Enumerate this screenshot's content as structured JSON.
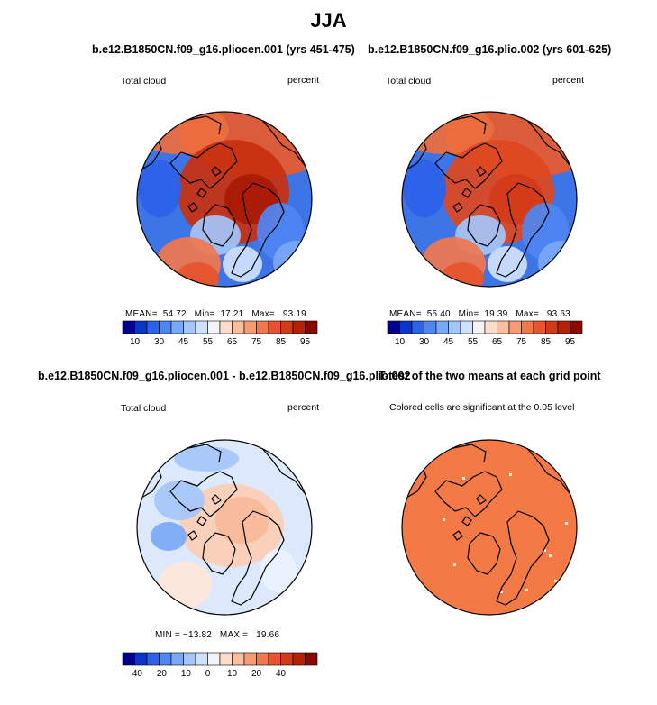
{
  "figure": {
    "title": "JJA"
  },
  "panels": [
    {
      "title": "b.e12.B1850CN.f09_g16.pliocen.001 (yrs 451-475)",
      "variable": "Total cloud",
      "units": "percent",
      "stats": {
        "mean_label": "MEAN=",
        "mean": "54.72",
        "min_label": "Min=",
        "min": "17.21",
        "max_label": "Max=",
        "max": "93.19"
      }
    },
    {
      "title": "b.e12.B1850CN.f09_g16.plio.002 (yrs 601-625)",
      "variable": "Total cloud",
      "units": "percent",
      "stats": {
        "mean_label": "MEAN=",
        "mean": "55.40",
        "min_label": "Min=",
        "min": "19.39",
        "max_label": "Max=",
        "max": "93.63"
      }
    },
    {
      "title": "b.e12.B1850CN.f09_g16.pliocen.001 - b.e12.B1850CN.f09_g16.plio.002",
      "variable": "Total cloud",
      "units": "percent",
      "stats_line": "MIN = −13.82   MAX =   19.66"
    },
    {
      "title": "T-test of the two means at each grid point",
      "subtitle": "Colored cells are significant at the 0.05 level"
    }
  ],
  "chart_data": [
    {
      "type": "heatmap",
      "projection": "north polar stereographic",
      "title": "b.e12.B1850CN.f09_g16.pliocen.001 (yrs 451-475)",
      "variable": "Total cloud",
      "units": "percent",
      "mean": 54.72,
      "min": 17.21,
      "max": 93.19,
      "colorbar_levels": [
        10,
        30,
        45,
        55,
        65,
        75,
        85,
        95
      ],
      "colorbar_colors": [
        "#00008a",
        "#0a35c8",
        "#2b62e8",
        "#4e86f2",
        "#79a8f7",
        "#a4c6fb",
        "#cfe2fd",
        "#f3f3f5",
        "#fcdccb",
        "#fbbd9f",
        "#f79b74",
        "#f1774d",
        "#e6552d",
        "#d23a18",
        "#b42008",
        "#8a0a02"
      ]
    },
    {
      "type": "heatmap",
      "projection": "north polar stereographic",
      "title": "b.e12.B1850CN.f09_g16.plio.002 (yrs 601-625)",
      "variable": "Total cloud",
      "units": "percent",
      "mean": 55.4,
      "min": 19.39,
      "max": 93.63,
      "colorbar_levels": [
        10,
        30,
        45,
        55,
        65,
        75,
        85,
        95
      ],
      "colorbar_colors": [
        "#00008a",
        "#0a35c8",
        "#2b62e8",
        "#4e86f2",
        "#79a8f7",
        "#a4c6fb",
        "#cfe2fd",
        "#f3f3f5",
        "#fcdccb",
        "#fbbd9f",
        "#f79b74",
        "#f1774d",
        "#e6552d",
        "#d23a18",
        "#b42008",
        "#8a0a02"
      ]
    },
    {
      "type": "heatmap",
      "projection": "north polar stereographic",
      "title": "b.e12.B1850CN.f09_g16.pliocen.001 - b.e12.B1850CN.f09_g16.plio.002",
      "variable": "Total cloud",
      "units": "percent",
      "min": -13.82,
      "max": 19.66,
      "colorbar_levels": [
        -40,
        -20,
        -10,
        0,
        10,
        20,
        40
      ],
      "colorbar_colors": [
        "#00008a",
        "#0a35c8",
        "#2b62e8",
        "#4e86f2",
        "#79a8f7",
        "#a4c6fb",
        "#cfe2fd",
        "#f3f3f5",
        "#fcdccb",
        "#fbbd9f",
        "#f79b74",
        "#f1774d",
        "#e6552d",
        "#d23a18",
        "#b42008",
        "#8a0a02"
      ]
    },
    {
      "type": "heatmap",
      "projection": "north polar stereographic",
      "title": "T-test of the two means at each grid point",
      "note": "Colored cells are significant at the 0.05 level",
      "significance_level": 0.05,
      "significant_color": "#f47a45"
    }
  ]
}
